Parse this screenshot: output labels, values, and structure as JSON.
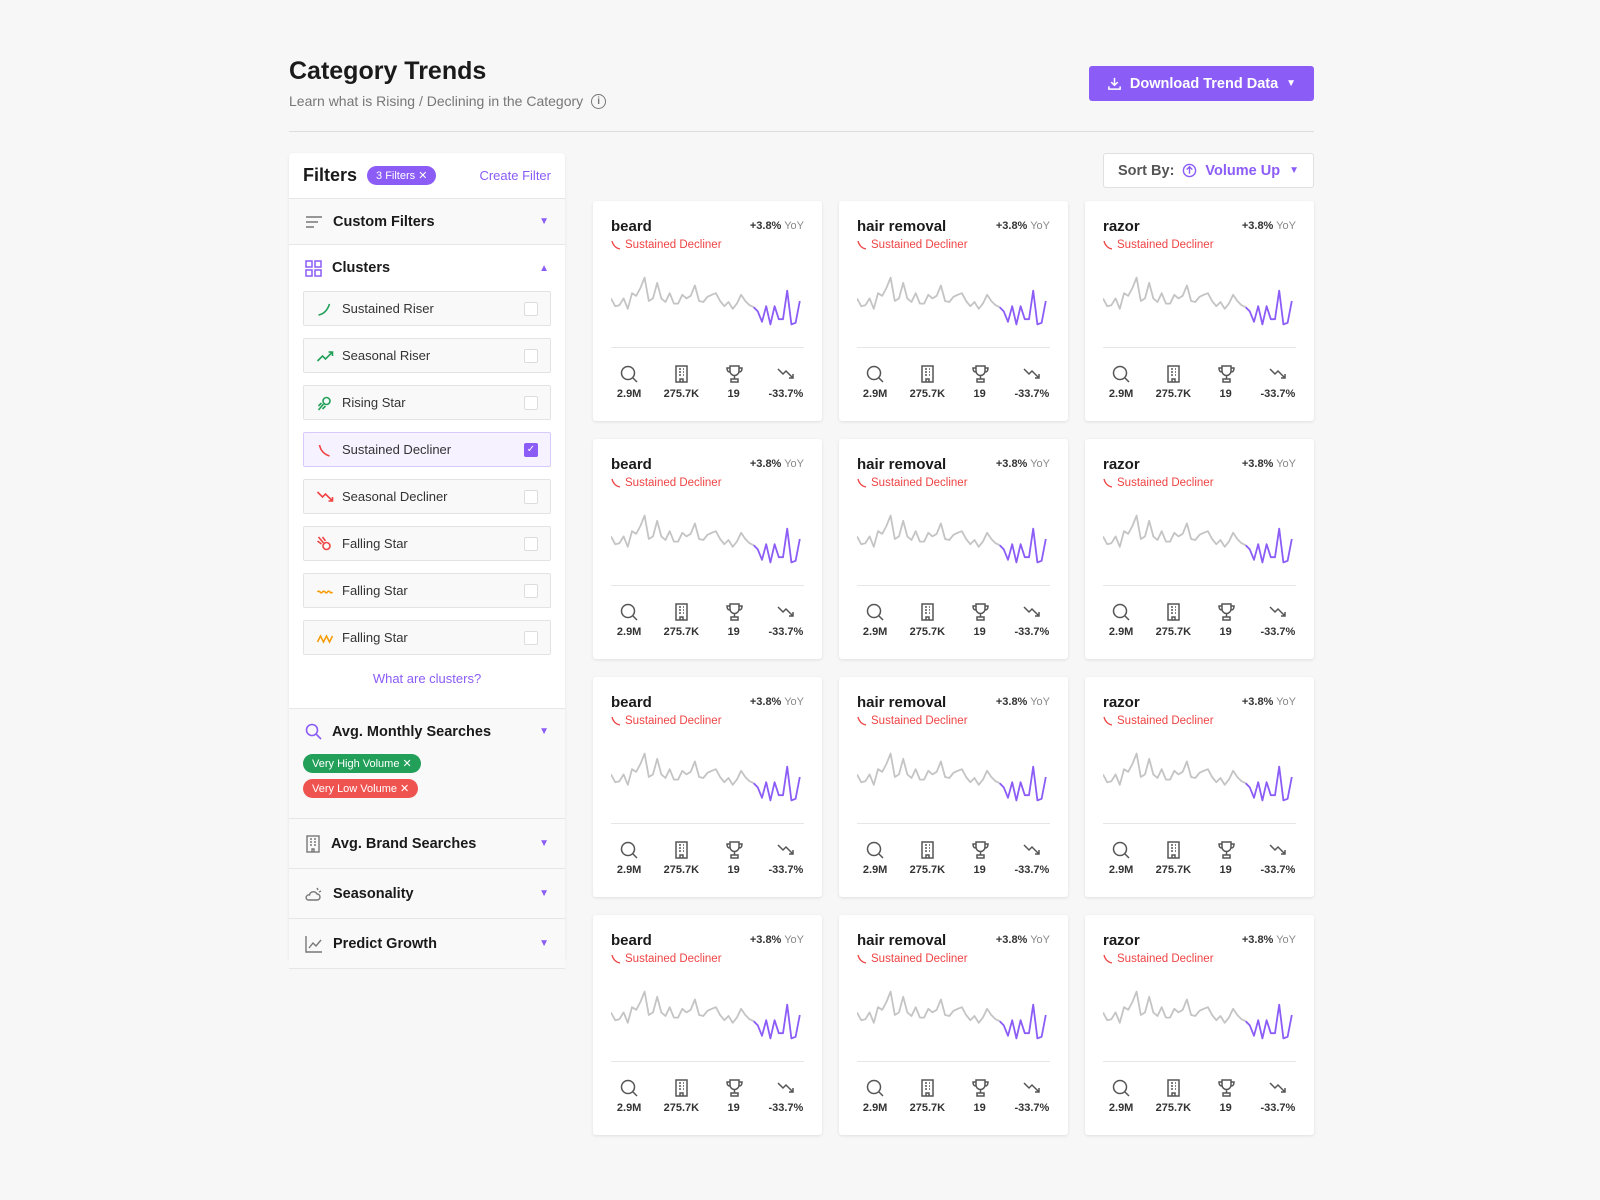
{
  "header": {
    "title": "Category Trends",
    "subtitle": "Learn what is Rising / Declining in the Category",
    "download_label": "Download Trend Data"
  },
  "filters": {
    "title": "Filters",
    "badge": "3 Filters",
    "create": "Create Filter",
    "custom": "Custom Filters",
    "clusters": "Clusters",
    "cluster_items": [
      {
        "label": "Sustained Riser",
        "icon": "sustained-riser-icon",
        "color": "#22a05a",
        "checked": false
      },
      {
        "label": "Seasonal Riser",
        "icon": "seasonal-riser-icon",
        "color": "#22a05a",
        "checked": false
      },
      {
        "label": "Rising Star",
        "icon": "rising-star-icon",
        "color": "#22a05a",
        "checked": false
      },
      {
        "label": "Sustained Decliner",
        "icon": "sustained-decliner-icon",
        "color": "#ef4444",
        "checked": true
      },
      {
        "label": "Seasonal Decliner",
        "icon": "seasonal-decliner-icon",
        "color": "#ef4444",
        "checked": false
      },
      {
        "label": "Falling Star",
        "icon": "falling-star-icon",
        "color": "#ef4444",
        "checked": false
      },
      {
        "label": "Falling Star",
        "icon": "wave-icon",
        "color": "#f59e0b",
        "checked": false
      },
      {
        "label": "Falling Star",
        "icon": "zigzag-icon",
        "color": "#f59e0b",
        "checked": false
      }
    ],
    "what_clusters": "What are clusters?",
    "monthly": "Avg. Monthly Searches",
    "chips": [
      {
        "label": "Very High Volume",
        "color": "#22a05a"
      },
      {
        "label": "Very Low Volume",
        "color": "#ef5350"
      }
    ],
    "brand": "Avg. Brand Searches",
    "seasonality": "Seasonality",
    "predict": "Predict Growth"
  },
  "sort": {
    "label": "Sort By:",
    "value": "Volume Up"
  },
  "colors": {
    "accent": "#8b5cf6",
    "decline": "#ef4444"
  },
  "sparkline": {
    "history": [
      55,
      40,
      42,
      55,
      35,
      65,
      60,
      75,
      95,
      50,
      55,
      85,
      55,
      48,
      65,
      45,
      45,
      62,
      55,
      60,
      80,
      50,
      48,
      58,
      62,
      65,
      50,
      40,
      48,
      35,
      45,
      62,
      50,
      42,
      38
    ],
    "forecast": [
      38,
      30,
      10,
      40,
      5,
      40,
      15,
      15,
      70,
      5,
      8,
      50
    ]
  },
  "cards": [
    {
      "name": "beard",
      "yoy": "+3.8%",
      "yoy_suffix": "YoY",
      "cluster": "Sustained Decliner",
      "searches": "2.9M",
      "brands": "275.7K",
      "rank": "19",
      "growth": "-33.7%"
    },
    {
      "name": "hair removal",
      "yoy": "+3.8%",
      "yoy_suffix": "YoY",
      "cluster": "Sustained Decliner",
      "searches": "2.9M",
      "brands": "275.7K",
      "rank": "19",
      "growth": "-33.7%"
    },
    {
      "name": "razor",
      "yoy": "+3.8%",
      "yoy_suffix": "YoY",
      "cluster": "Sustained Decliner",
      "searches": "2.9M",
      "brands": "275.7K",
      "rank": "19",
      "growth": "-33.7%"
    },
    {
      "name": "beard",
      "yoy": "+3.8%",
      "yoy_suffix": "YoY",
      "cluster": "Sustained Decliner",
      "searches": "2.9M",
      "brands": "275.7K",
      "rank": "19",
      "growth": "-33.7%"
    },
    {
      "name": "hair removal",
      "yoy": "+3.8%",
      "yoy_suffix": "YoY",
      "cluster": "Sustained Decliner",
      "searches": "2.9M",
      "brands": "275.7K",
      "rank": "19",
      "growth": "-33.7%"
    },
    {
      "name": "razor",
      "yoy": "+3.8%",
      "yoy_suffix": "YoY",
      "cluster": "Sustained Decliner",
      "searches": "2.9M",
      "brands": "275.7K",
      "rank": "19",
      "growth": "-33.7%"
    },
    {
      "name": "beard",
      "yoy": "+3.8%",
      "yoy_suffix": "YoY",
      "cluster": "Sustained Decliner",
      "searches": "2.9M",
      "brands": "275.7K",
      "rank": "19",
      "growth": "-33.7%"
    },
    {
      "name": "hair removal",
      "yoy": "+3.8%",
      "yoy_suffix": "YoY",
      "cluster": "Sustained Decliner",
      "searches": "2.9M",
      "brands": "275.7K",
      "rank": "19",
      "growth": "-33.7%"
    },
    {
      "name": "razor",
      "yoy": "+3.8%",
      "yoy_suffix": "YoY",
      "cluster": "Sustained Decliner",
      "searches": "2.9M",
      "brands": "275.7K",
      "rank": "19",
      "growth": "-33.7%"
    },
    {
      "name": "beard",
      "yoy": "+3.8%",
      "yoy_suffix": "YoY",
      "cluster": "Sustained Decliner",
      "searches": "2.9M",
      "brands": "275.7K",
      "rank": "19",
      "growth": "-33.7%"
    },
    {
      "name": "hair removal",
      "yoy": "+3.8%",
      "yoy_suffix": "YoY",
      "cluster": "Sustained Decliner",
      "searches": "2.9M",
      "brands": "275.7K",
      "rank": "19",
      "growth": "-33.7%"
    },
    {
      "name": "razor",
      "yoy": "+3.8%",
      "yoy_suffix": "YoY",
      "cluster": "Sustained Decliner",
      "searches": "2.9M",
      "brands": "275.7K",
      "rank": "19",
      "growth": "-33.7%"
    }
  ]
}
